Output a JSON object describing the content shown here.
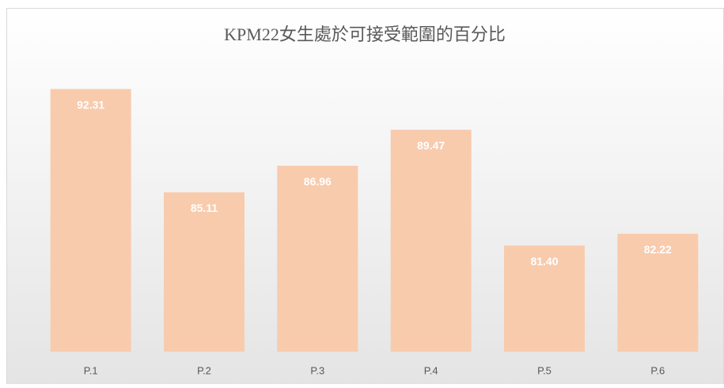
{
  "chart_data": {
    "type": "bar",
    "title": "KPM22女生處於可接受範圍的百分比",
    "categories": [
      "P.1",
      "P.2",
      "P.3",
      "P.4",
      "P.5",
      "P.6"
    ],
    "values": [
      92.31,
      85.11,
      86.96,
      89.47,
      81.4,
      82.22
    ],
    "value_labels": [
      "92.31",
      "85.11",
      "86.96",
      "89.47",
      "81.40",
      "82.22"
    ],
    "color": "#f8cbad",
    "ylim": [
      74,
      94
    ]
  }
}
